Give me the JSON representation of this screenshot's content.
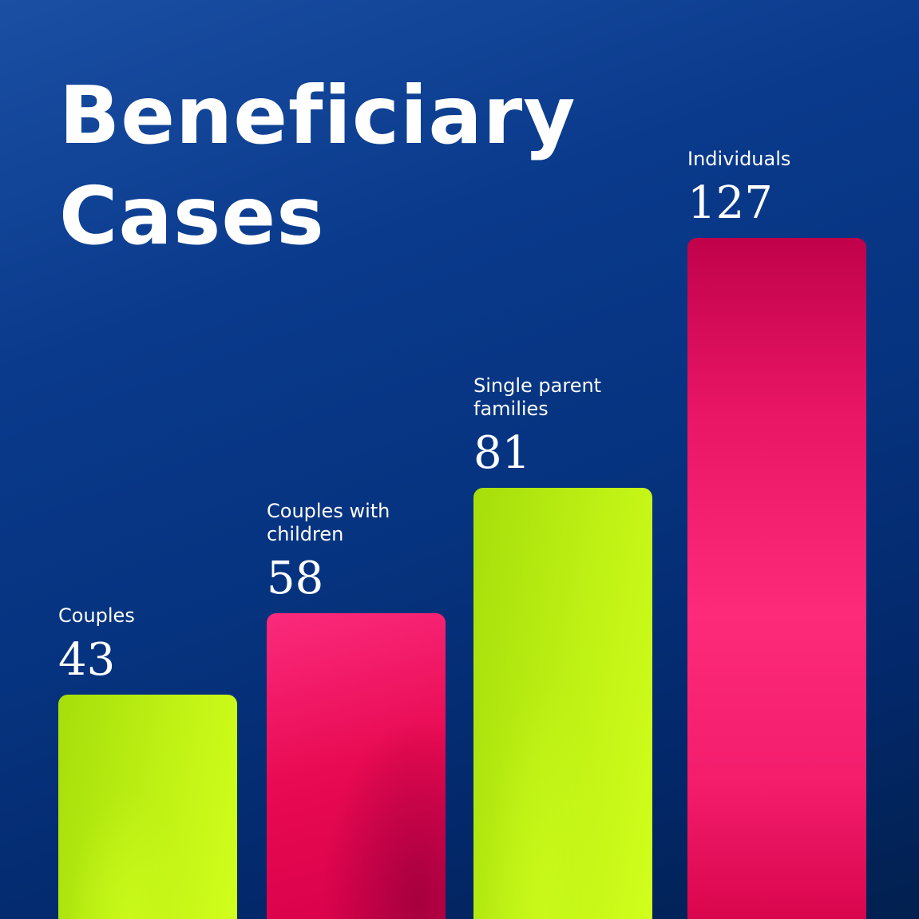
{
  "chart_data": {
    "type": "bar",
    "title": "Beneficiary Cases",
    "title_lines": [
      "Beneficiary",
      "Cases"
    ],
    "categories": [
      "Couples",
      "Couples with children",
      "Single parent families",
      "Individuals"
    ],
    "category_lines": [
      [
        "Couples"
      ],
      [
        "Couples with",
        "children"
      ],
      [
        "Single parent",
        "families"
      ],
      [
        "Individuals"
      ]
    ],
    "values": [
      43,
      58,
      81,
      127
    ],
    "value_labels": [
      "43",
      "58",
      "81",
      "127"
    ],
    "bar_colors": [
      "#c2f014",
      "#f0125e",
      "#c2f014",
      "#f0125e"
    ],
    "xlabel": "",
    "ylabel": "",
    "axes_visible": false,
    "grid": false,
    "legend": "none",
    "background": "#0a3a8c"
  }
}
